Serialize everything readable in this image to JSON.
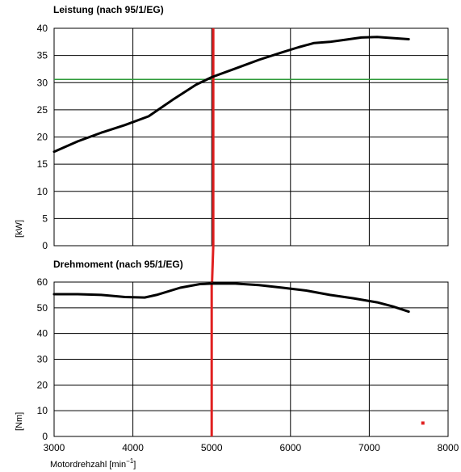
{
  "chart_data": [
    {
      "type": "line",
      "title": "Leistung (nach 95/1/EG)",
      "ylabel": "[kW]",
      "ylim": [
        0,
        40
      ],
      "xlim": [
        3000,
        8000
      ],
      "yticks": [
        0,
        5,
        10,
        15,
        20,
        25,
        30,
        35,
        40
      ],
      "xticks": [
        3000,
        4000,
        5000,
        6000,
        7000,
        8000
      ],
      "grid": true,
      "series": [
        {
          "x": [
            3000,
            3300,
            3600,
            3900,
            4200,
            4500,
            4800,
            5000,
            5300,
            5600,
            5900,
            6100,
            6300,
            6500,
            6700,
            6900,
            7100,
            7300,
            7500
          ],
          "y": [
            17.3,
            19.2,
            20.8,
            22.2,
            23.8,
            26.8,
            29.6,
            31.0,
            32.6,
            34.2,
            35.6,
            36.5,
            37.3,
            37.5,
            37.9,
            38.3,
            38.4,
            38.2,
            38.0
          ],
          "color": "#000000"
        }
      ],
      "reference_lines": [
        {
          "orientation": "horizontal",
          "value": 30.6,
          "color": "#2e9b3a"
        },
        {
          "orientation": "vertical",
          "value": 5020,
          "color": "#e02020"
        }
      ]
    },
    {
      "type": "line",
      "title": "Drehmoment (nach 95/1/EG)",
      "ylabel": "[Nm]",
      "xlabel": "Motordrehzahl [min",
      "xlabel_sup": "−1",
      "xlabel_end": "]",
      "ylim": [
        0,
        60
      ],
      "xlim": [
        3000,
        8000
      ],
      "yticks": [
        0,
        10,
        20,
        30,
        40,
        50,
        60
      ],
      "xticks": [
        3000,
        4000,
        5000,
        6000,
        7000,
        8000
      ],
      "grid": true,
      "series": [
        {
          "x": [
            3000,
            3300,
            3600,
            3900,
            4150,
            4300,
            4600,
            4850,
            5000,
            5300,
            5600,
            5900,
            6200,
            6500,
            6800,
            7100,
            7300,
            7500
          ],
          "y": [
            55.3,
            55.3,
            55.0,
            54.2,
            54.0,
            55.0,
            57.8,
            59.2,
            59.4,
            59.4,
            58.8,
            57.8,
            56.7,
            55.0,
            53.7,
            52.1,
            50.5,
            48.5
          ],
          "color": "#000000"
        }
      ],
      "reference_lines": [
        {
          "orientation": "vertical",
          "value": 5000,
          "color": "#e02020"
        }
      ],
      "markers": [
        {
          "x": 7680,
          "y": 5.2,
          "color": "#e02020"
        }
      ]
    }
  ]
}
